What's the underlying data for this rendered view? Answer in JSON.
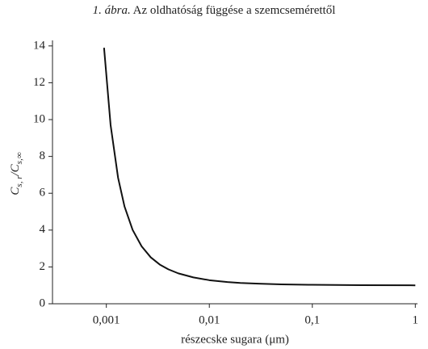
{
  "chart_data": {
    "type": "line",
    "figure_label": "1. ábra.",
    "title": "Az oldhatóság függése a szemcsemérettől",
    "xlabel": "részecske sugara (μm)",
    "ylabel": [
      "C",
      "s, r",
      "/C",
      "s,∞"
    ],
    "x": [
      0.00095,
      0.0011,
      0.0013,
      0.0015,
      0.0018,
      0.0022,
      0.0027,
      0.0033,
      0.004,
      0.005,
      0.007,
      0.01,
      0.015,
      0.02,
      0.03,
      0.05,
      0.1,
      0.3,
      1
    ],
    "values": [
      13.9,
      9.7,
      6.84,
      5.29,
      4.01,
      3.12,
      2.52,
      2.13,
      1.87,
      1.65,
      1.43,
      1.28,
      1.18,
      1.13,
      1.09,
      1.05,
      1.03,
      1.01,
      1.0
    ],
    "color": "#111",
    "xscale": "log",
    "xlim": [
      0.0003,
      1.05
    ],
    "xticks": [
      {
        "value": 0.001,
        "label": "0,001"
      },
      {
        "value": 0.01,
        "label": "0,01"
      },
      {
        "value": 0.1,
        "label": "0,1"
      },
      1
    ],
    "ylim": [
      0,
      14.3
    ],
    "yticks": [
      0,
      2,
      4,
      6,
      8,
      10,
      12,
      14
    ],
    "grid": false
  }
}
